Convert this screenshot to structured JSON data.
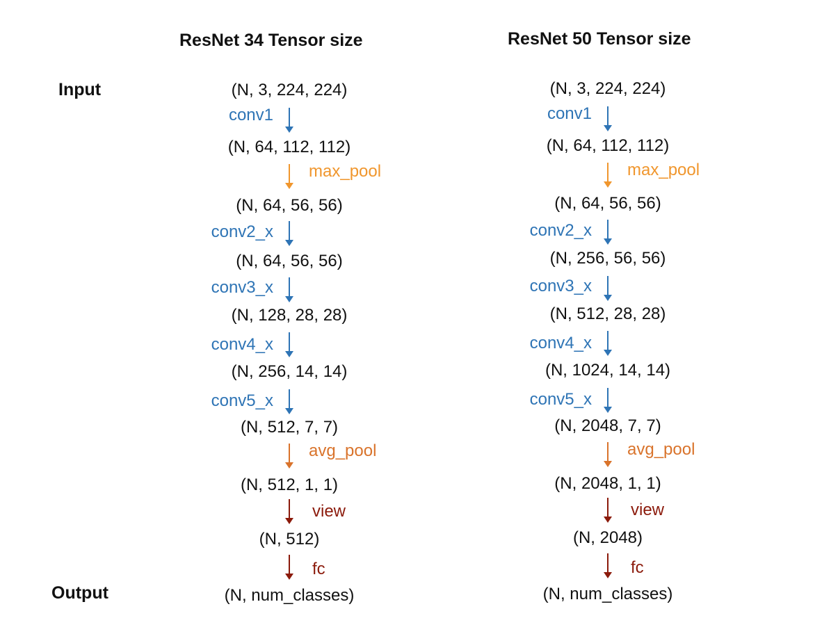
{
  "colors": {
    "conv": "#2e74b5",
    "max_pool": "#f0962d",
    "avg_pool": "#d9732b",
    "head": "#8b1a0b"
  },
  "row_labels": {
    "input": "Input",
    "output": "Output"
  },
  "columns": [
    {
      "title": "ResNet 34 Tensor size",
      "shapes": [
        "(N, 3, 224, 224)",
        "(N, 64, 112, 112)",
        "(N, 64, 56, 56)",
        "(N, 64, 56, 56)",
        "(N, 128, 28, 28)",
        "(N, 256, 14, 14)",
        "(N, 512, 7, 7)",
        "(N, 512, 1, 1)",
        "(N, 512)",
        "(N, num_classes)"
      ],
      "ops": [
        {
          "label": "conv1",
          "kind": "conv",
          "side": "left"
        },
        {
          "label": "max_pool",
          "kind": "max_pool",
          "side": "right"
        },
        {
          "label": "conv2_x",
          "kind": "conv",
          "side": "left"
        },
        {
          "label": "conv3_x",
          "kind": "conv",
          "side": "left"
        },
        {
          "label": "conv4_x",
          "kind": "conv",
          "side": "left"
        },
        {
          "label": "conv5_x",
          "kind": "conv",
          "side": "left"
        },
        {
          "label": "avg_pool",
          "kind": "avg_pool",
          "side": "right"
        },
        {
          "label": "view",
          "kind": "head",
          "side": "right"
        },
        {
          "label": "fc",
          "kind": "head",
          "side": "right"
        }
      ]
    },
    {
      "title": "ResNet 50 Tensor size",
      "shapes": [
        "(N, 3, 224, 224)",
        "(N, 64, 112, 112)",
        "(N, 64, 56, 56)",
        "(N, 256, 56, 56)",
        "(N, 512, 28, 28)",
        "(N, 1024, 14, 14)",
        "(N, 2048, 7, 7)",
        "(N, 2048, 1, 1)",
        "(N, 2048)",
        "(N, num_classes)"
      ],
      "ops": [
        {
          "label": "conv1",
          "kind": "conv",
          "side": "left"
        },
        {
          "label": "max_pool",
          "kind": "max_pool",
          "side": "right"
        },
        {
          "label": "conv2_x",
          "kind": "conv",
          "side": "left"
        },
        {
          "label": "conv3_x",
          "kind": "conv",
          "side": "left"
        },
        {
          "label": "conv4_x",
          "kind": "conv",
          "side": "left"
        },
        {
          "label": "conv5_x",
          "kind": "conv",
          "side": "left"
        },
        {
          "label": "avg_pool",
          "kind": "avg_pool",
          "side": "right"
        },
        {
          "label": "view",
          "kind": "head",
          "side": "right"
        },
        {
          "label": "fc",
          "kind": "head",
          "side": "right"
        }
      ]
    }
  ]
}
